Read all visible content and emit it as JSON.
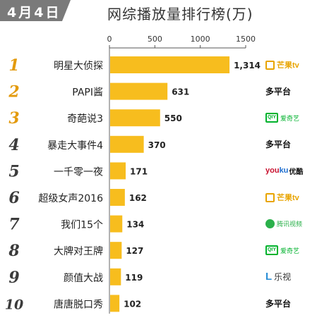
{
  "header": {
    "date": "4月4日",
    "title": "网综播放量排行榜(万)"
  },
  "colors": {
    "bar": "#f7bd1e",
    "rank": "#e39a0c",
    "rank_dark": "#3b3b3b",
    "badge": "#7a7a7a"
  },
  "chart_data": {
    "type": "bar",
    "orientation": "horizontal",
    "title": "网综播放量排行榜(万)",
    "xlim": [
      0,
      1500
    ],
    "ticks": [
      0,
      500,
      1000,
      1500
    ],
    "ranks": [
      "1",
      "2",
      "3",
      "4",
      "5",
      "6",
      "7",
      "8",
      "9",
      "10"
    ],
    "categories": [
      "明星大侦探",
      "PAPI酱",
      "奇葩说3",
      "暴走大事件4",
      "一千零一夜",
      "超级女声2016",
      "我们15个",
      "大牌对王牌",
      "颜值大战",
      "唐唐脱口秀"
    ],
    "values": [
      1314,
      631,
      550,
      370,
      171,
      162,
      134,
      127,
      119,
      102
    ],
    "value_labels": [
      "1,314",
      "631",
      "550",
      "370",
      "171",
      "162",
      "134",
      "127",
      "119",
      "102"
    ],
    "platforms": [
      "芒果tv",
      "多平台",
      "爱奇艺",
      "多平台",
      "优酷",
      "芒果tv",
      "腾讯视频",
      "爱奇艺",
      "乐视",
      "多平台"
    ],
    "platform_icons": [
      "mango-tv-logo",
      "multi-platform-logo",
      "iqiyi-logo",
      "multi-platform-logo",
      "youku-logo",
      "mango-tv-logo",
      "tencent-video-logo",
      "iqiyi-logo",
      "letv-logo",
      "multi-platform-logo"
    ]
  }
}
